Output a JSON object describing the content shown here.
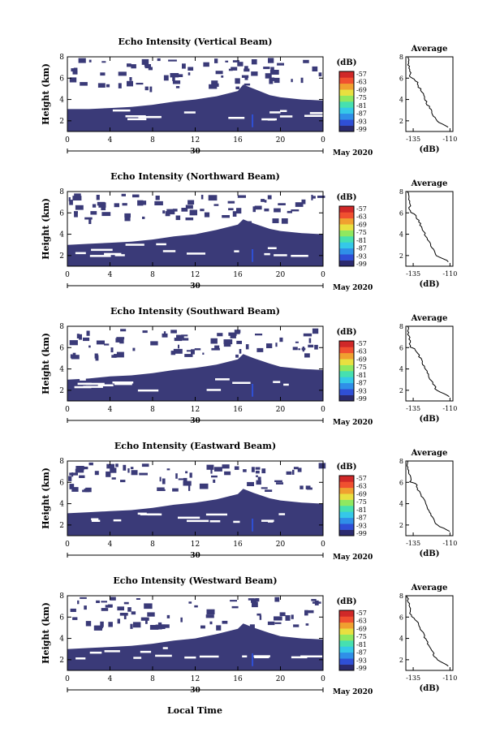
{
  "figure": {
    "xlabel": "Local Time",
    "date_label": "May 2020"
  },
  "colorbar": {
    "unit": "(dB)",
    "ticks": [
      "-57",
      "-63",
      "-69",
      "-75",
      "-81",
      "-87",
      "-93",
      "-99"
    ],
    "colors": [
      "#2b2a6e",
      "#2f4fd6",
      "#2f8fe8",
      "#35c8e8",
      "#46e0b0",
      "#8fe860",
      "#e8e040",
      "#f0a030",
      "#f05030",
      "#d02828"
    ]
  },
  "panel_fill_color": "#3a3a78",
  "chart_data": [
    {
      "type": "heatmap",
      "title": "Echo Intensity (Vertical Beam)",
      "ylabel": "Height (km)",
      "x_ticks": [
        "0",
        "4",
        "8",
        "12",
        "16",
        "20",
        "0"
      ],
      "x_sub_label": "30",
      "xlim": [
        0,
        24
      ],
      "y_ticks": [
        "2",
        "4",
        "6",
        "8"
      ],
      "ylim": [
        1,
        8
      ],
      "echo_top_km": [
        [
          0,
          3.1
        ],
        [
          2,
          3.1
        ],
        [
          4,
          3.2
        ],
        [
          6,
          3.3
        ],
        [
          8,
          3.5
        ],
        [
          10,
          3.8
        ],
        [
          12,
          4.0
        ],
        [
          14,
          4.3
        ],
        [
          16,
          4.8
        ],
        [
          16.5,
          5.4
        ],
        [
          17.5,
          5.0
        ],
        [
          19,
          4.4
        ],
        [
          20,
          4.2
        ],
        [
          22,
          4.0
        ],
        [
          24,
          3.9
        ]
      ],
      "average": {
        "title": "Average",
        "xlabel": "(dB)",
        "x_ticks": [
          "-135",
          "-110"
        ],
        "xlim": [
          -140,
          -108
        ],
        "y_ticks": [
          "2",
          "4",
          "6",
          "8"
        ],
        "ylim": [
          1,
          8
        ]
      }
    },
    {
      "type": "heatmap",
      "title": "Echo Intensity (Northward Beam)",
      "ylabel": "Height (km)",
      "x_ticks": [
        "0",
        "4",
        "8",
        "12",
        "16",
        "20",
        "0"
      ],
      "x_sub_label": "30",
      "xlim": [
        0,
        24
      ],
      "y_ticks": [
        "2",
        "4",
        "6",
        "8"
      ],
      "ylim": [
        1,
        8
      ],
      "echo_top_km": [
        [
          0,
          3.0
        ],
        [
          2,
          3.1
        ],
        [
          4,
          3.2
        ],
        [
          6,
          3.3
        ],
        [
          8,
          3.5
        ],
        [
          10,
          3.8
        ],
        [
          12,
          4.0
        ],
        [
          14,
          4.4
        ],
        [
          16,
          4.9
        ],
        [
          16.5,
          5.4
        ],
        [
          17.5,
          5.0
        ],
        [
          19,
          4.5
        ],
        [
          20,
          4.3
        ],
        [
          22,
          4.1
        ],
        [
          24,
          4.0
        ]
      ],
      "average": {
        "title": "Average",
        "xlabel": "(dB)",
        "x_ticks": [
          "-135",
          "-110"
        ],
        "xlim": [
          -140,
          -108
        ],
        "y_ticks": [
          "2",
          "4",
          "6",
          "8"
        ],
        "ylim": [
          1,
          8
        ]
      }
    },
    {
      "type": "heatmap",
      "title": "Echo Intensity (Southward Beam)",
      "ylabel": "Height (km)",
      "x_ticks": [
        "0",
        "4",
        "8",
        "12",
        "16",
        "20",
        "0"
      ],
      "x_sub_label": "30",
      "xlim": [
        0,
        24
      ],
      "y_ticks": [
        "2",
        "4",
        "6",
        "8"
      ],
      "ylim": [
        1,
        8
      ],
      "echo_top_km": [
        [
          0,
          3.0
        ],
        [
          2,
          3.1
        ],
        [
          4,
          3.3
        ],
        [
          6,
          3.4
        ],
        [
          8,
          3.6
        ],
        [
          10,
          3.9
        ],
        [
          12,
          4.1
        ],
        [
          14,
          4.4
        ],
        [
          16,
          4.9
        ],
        [
          16.5,
          5.4
        ],
        [
          17.5,
          5.0
        ],
        [
          19,
          4.5
        ],
        [
          20,
          4.2
        ],
        [
          22,
          4.0
        ],
        [
          24,
          3.9
        ]
      ],
      "average": {
        "title": "Average",
        "xlabel": "(dB)",
        "x_ticks": [
          "-135",
          "-110"
        ],
        "xlim": [
          -140,
          -108
        ],
        "y_ticks": [
          "2",
          "4",
          "6",
          "8"
        ],
        "ylim": [
          1,
          8
        ]
      }
    },
    {
      "type": "heatmap",
      "title": "Echo Intensity (Eastward Beam)",
      "ylabel": "Height (km)",
      "x_ticks": [
        "0",
        "4",
        "8",
        "12",
        "16",
        "20",
        "0"
      ],
      "x_sub_label": "30",
      "xlim": [
        0,
        24
      ],
      "y_ticks": [
        "2",
        "4",
        "6",
        "8"
      ],
      "ylim": [
        1,
        8
      ],
      "echo_top_km": [
        [
          0,
          3.1
        ],
        [
          2,
          3.2
        ],
        [
          4,
          3.3
        ],
        [
          6,
          3.4
        ],
        [
          8,
          3.6
        ],
        [
          10,
          3.9
        ],
        [
          12,
          4.1
        ],
        [
          14,
          4.4
        ],
        [
          16,
          4.9
        ],
        [
          16.5,
          5.4
        ],
        [
          17.5,
          5.0
        ],
        [
          19,
          4.5
        ],
        [
          20,
          4.3
        ],
        [
          22,
          4.1
        ],
        [
          24,
          4.0
        ]
      ],
      "average": {
        "title": "Average",
        "xlabel": "(dB)",
        "x_ticks": [
          "-135",
          "-110"
        ],
        "xlim": [
          -140,
          -108
        ],
        "y_ticks": [
          "2",
          "4",
          "6",
          "8"
        ],
        "ylim": [
          1,
          8
        ]
      }
    },
    {
      "type": "heatmap",
      "title": "Echo Intensity (Westward Beam)",
      "ylabel": "Height (km)",
      "x_ticks": [
        "0",
        "4",
        "8",
        "12",
        "16",
        "20",
        "0"
      ],
      "x_sub_label": "30",
      "xlim": [
        0,
        24
      ],
      "y_ticks": [
        "2",
        "4",
        "6",
        "8"
      ],
      "ylim": [
        1,
        8
      ],
      "echo_top_km": [
        [
          0,
          3.0
        ],
        [
          2,
          3.1
        ],
        [
          4,
          3.2
        ],
        [
          6,
          3.3
        ],
        [
          8,
          3.5
        ],
        [
          10,
          3.8
        ],
        [
          12,
          4.0
        ],
        [
          14,
          4.4
        ],
        [
          16,
          4.9
        ],
        [
          16.5,
          5.4
        ],
        [
          17.5,
          5.0
        ],
        [
          19,
          4.5
        ],
        [
          20,
          4.2
        ],
        [
          22,
          4.0
        ],
        [
          24,
          3.9
        ]
      ],
      "average": {
        "title": "Average",
        "xlabel": "(dB)",
        "x_ticks": [
          "-135",
          "-110"
        ],
        "xlim": [
          -140,
          -108
        ],
        "y_ticks": [
          "2",
          "4",
          "6",
          "8"
        ],
        "ylim": [
          1,
          8
        ]
      }
    }
  ]
}
